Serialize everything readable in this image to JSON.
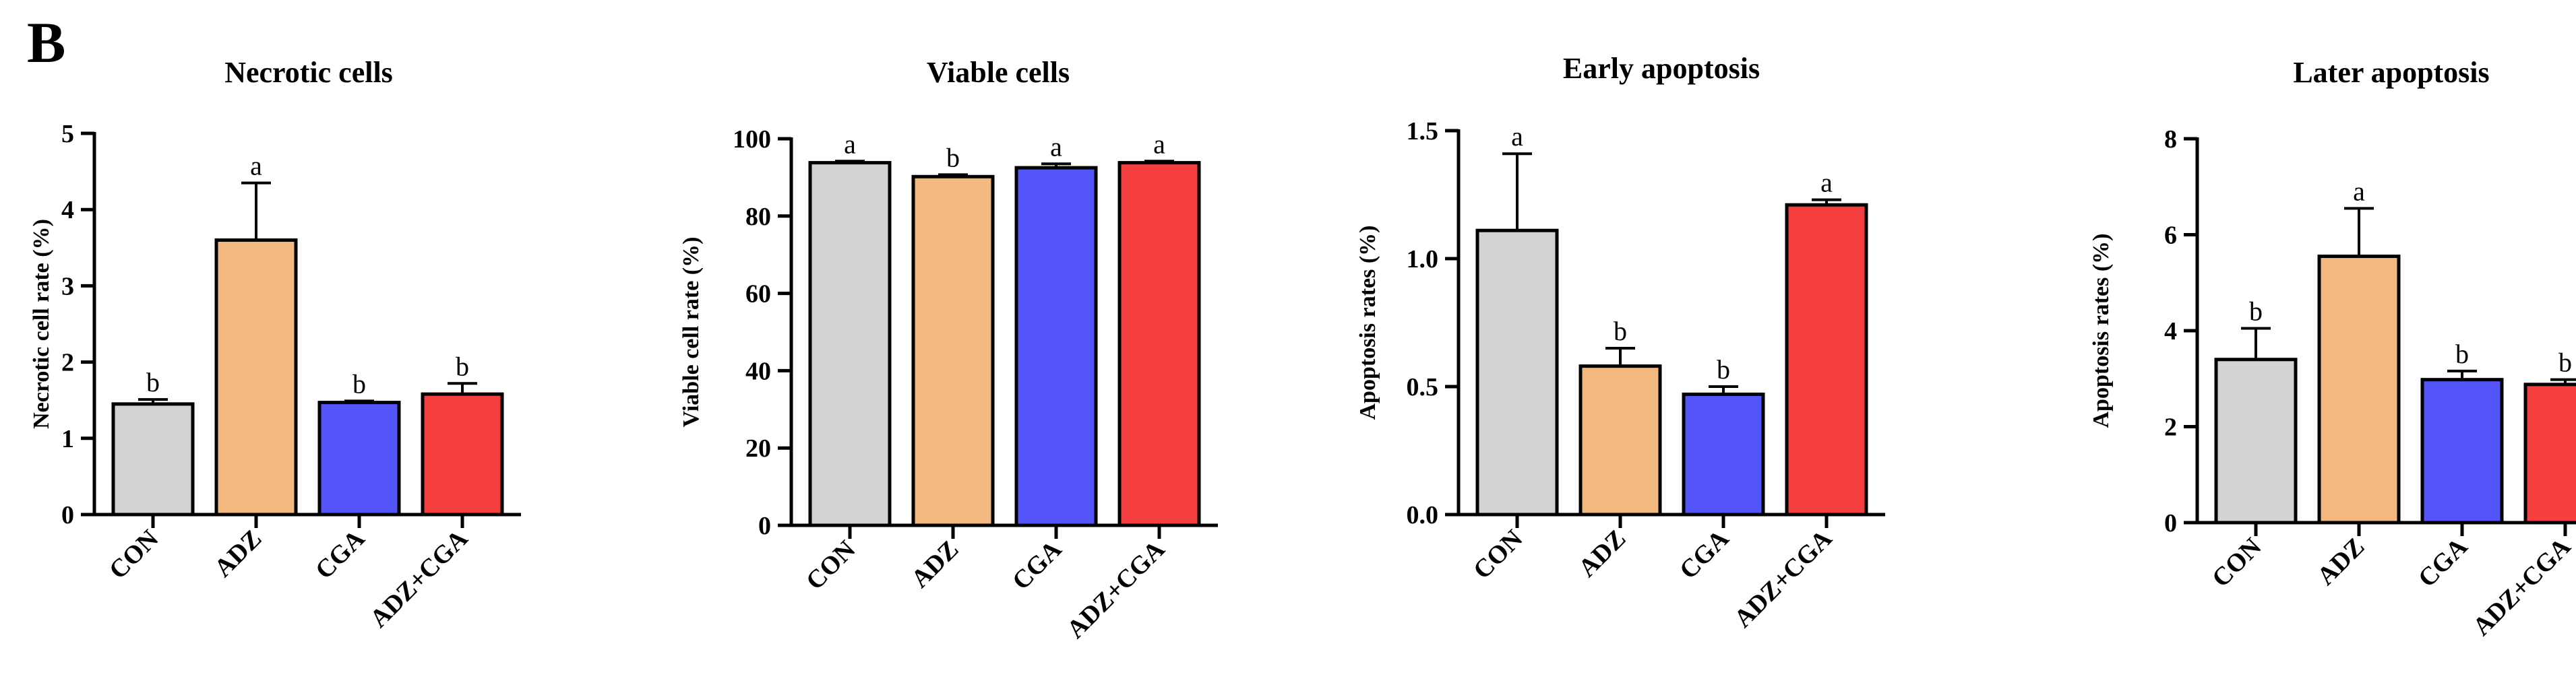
{
  "panel_label": "B",
  "colors": {
    "bars": [
      "#d3d3d3",
      "#f1b880",
      "#5454fb",
      "#f53e3e"
    ],
    "axis": "#000000"
  },
  "chart_data": [
    {
      "type": "bar",
      "title": "Necrotic cells",
      "xlabel": "",
      "ylabel": "Necrotic cell rate (%)",
      "categories": [
        "CON",
        "ADZ",
        "CGA",
        "ADZ+CGA"
      ],
      "values": [
        1.45,
        3.6,
        1.47,
        1.58
      ],
      "errors": [
        0.06,
        0.75,
        0.02,
        0.14
      ],
      "letters": [
        "b",
        "a",
        "b",
        "b"
      ],
      "ylim": [
        0,
        5
      ],
      "yticks": [
        0,
        1,
        2,
        3,
        4,
        5
      ],
      "ytick_labels": [
        "0",
        "1",
        "2",
        "3",
        "4",
        "5"
      ]
    },
    {
      "type": "bar",
      "title": "Viable cells",
      "xlabel": "",
      "ylabel": "Viable cell rate (%)",
      "categories": [
        "CON",
        "ADZ",
        "CGA",
        "ADZ+CGA"
      ],
      "values": [
        93.8,
        90.2,
        92.5,
        93.8
      ],
      "errors": [
        0.4,
        0.5,
        1.0,
        0.4
      ],
      "letters": [
        "a",
        "b",
        "a",
        "a"
      ],
      "ylim": [
        0,
        100
      ],
      "yticks": [
        0,
        20,
        40,
        60,
        80,
        100
      ],
      "ytick_labels": [
        "0",
        "20",
        "40",
        "60",
        "80",
        "100"
      ]
    },
    {
      "type": "bar",
      "title": "Early apoptosis",
      "xlabel": "",
      "ylabel": "Apoptosis rates (%)",
      "categories": [
        "CON",
        "ADZ",
        "CGA",
        "ADZ+CGA"
      ],
      "values": [
        1.11,
        0.58,
        0.47,
        1.21
      ],
      "errors": [
        0.3,
        0.07,
        0.03,
        0.02
      ],
      "letters": [
        "a",
        "b",
        "b",
        "a"
      ],
      "ylim": [
        0,
        1.5
      ],
      "yticks": [
        0,
        0.5,
        1.0,
        1.5
      ],
      "ytick_labels": [
        "0.0",
        "0.5",
        "1.0",
        "1.5"
      ]
    },
    {
      "type": "bar",
      "title": "Later apoptosis",
      "xlabel": "",
      "ylabel": "Apoptosis rates (%)",
      "categories": [
        "CON",
        "ADZ",
        "CGA",
        "ADZ+CGA"
      ],
      "values": [
        3.4,
        5.55,
        2.98,
        2.88
      ],
      "errors": [
        0.65,
        1.0,
        0.18,
        0.1
      ],
      "letters": [
        "b",
        "a",
        "b",
        "b"
      ],
      "ylim": [
        0,
        8
      ],
      "yticks": [
        0,
        2,
        4,
        6,
        8
      ],
      "ytick_labels": [
        "0",
        "2",
        "4",
        "6",
        "8"
      ]
    }
  ]
}
